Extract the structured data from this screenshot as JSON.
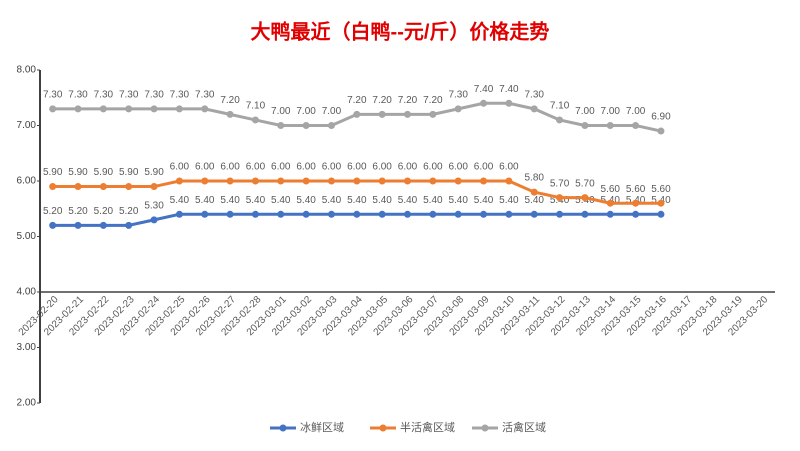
{
  "chart_data": {
    "type": "line",
    "title": "大鸭最近（白鸭--元/斤）价格走势",
    "categories": [
      "2023-02-20",
      "2023-02-21",
      "2023-02-22",
      "2023-02-23",
      "2023-02-24",
      "2023-02-25",
      "2023-02-26",
      "2023-02-27",
      "2023-02-28",
      "2023-03-01",
      "2023-03-02",
      "2023-03-03",
      "2023-03-04",
      "2023-03-05",
      "2023-03-06",
      "2023-03-07",
      "2023-03-08",
      "2023-03-09",
      "2023-03-10",
      "2023-03-11",
      "2023-03-12",
      "2023-03-13",
      "2023-03-14",
      "2023-03-15",
      "2023-03-16",
      "2023-03-17",
      "2023-03-18",
      "2023-03-19",
      "2023-03-20"
    ],
    "series": [
      {
        "name": "冰鲜区域",
        "color": "#4472c4",
        "values": [
          5.2,
          5.2,
          5.2,
          5.2,
          5.3,
          5.4,
          5.4,
          5.4,
          5.4,
          5.4,
          5.4,
          5.4,
          5.4,
          5.4,
          5.4,
          5.4,
          5.4,
          5.4,
          5.4,
          5.4,
          5.4,
          5.4,
          5.4,
          5.4,
          5.4,
          null,
          null,
          null,
          null
        ],
        "value_labels": [
          "5.20",
          "5.20",
          "5.20",
          "5.20",
          "5.30",
          "5.40",
          "5.40",
          "5.40",
          "5.40",
          "5.40",
          "5.40",
          "5.40",
          "5.40",
          "5.40",
          "5.40",
          "5.40",
          "5.40",
          "5.40",
          "5.40",
          "5.40",
          "5.40",
          "5.40",
          "5.40",
          "5.40",
          "5.40",
          null,
          null,
          null,
          null
        ]
      },
      {
        "name": "半活禽区域",
        "color": "#ed7d31",
        "values": [
          5.9,
          5.9,
          5.9,
          5.9,
          5.9,
          6.0,
          6.0,
          6.0,
          6.0,
          6.0,
          6.0,
          6.0,
          6.0,
          6.0,
          6.0,
          6.0,
          6.0,
          6.0,
          6.0,
          5.8,
          5.7,
          5.7,
          5.6,
          5.6,
          5.6,
          null,
          null,
          null,
          null
        ],
        "value_labels": [
          "5.90",
          "5.90",
          "5.90",
          "5.90",
          "5.90",
          "6.00",
          "6.00",
          "6.00",
          "6.00",
          "6.00",
          "6.00",
          "6.00",
          "6.00",
          "6.00",
          "6.00",
          "6.00",
          "6.00",
          "6.00",
          "6.00",
          "5.80",
          "5.70",
          "5.70",
          "5.60",
          "5.60",
          "5.60",
          null,
          null,
          null,
          null
        ]
      },
      {
        "name": "活禽区域",
        "color": "#a5a5a5",
        "values": [
          7.3,
          7.3,
          7.3,
          7.3,
          7.3,
          7.3,
          7.3,
          7.2,
          7.1,
          7.0,
          7.0,
          7.0,
          7.2,
          7.2,
          7.2,
          7.2,
          7.3,
          7.4,
          7.4,
          7.3,
          7.1,
          7.0,
          7.0,
          7.0,
          6.9,
          null,
          null,
          null,
          null
        ],
        "value_labels": [
          "7.30",
          "7.30",
          "7.30",
          "7.30",
          "7.30",
          "7.30",
          "7.30",
          "7.20",
          "7.10",
          "7.00",
          "7.00",
          "7.00",
          "7.20",
          "7.20",
          "7.20",
          "7.20",
          "7.30",
          "7.40",
          "7.40",
          "7.30",
          "7.10",
          "7.00",
          "7.00",
          "7.00",
          "6.90",
          null,
          null,
          null,
          null
        ]
      }
    ],
    "ylim": [
      2,
      8
    ],
    "yticks": [
      {
        "value": 2,
        "label": "2.00"
      },
      {
        "value": 3,
        "label": "3.00"
      },
      {
        "value": 4,
        "label": "4.00"
      },
      {
        "value": 5,
        "label": "5.00"
      },
      {
        "value": 6,
        "label": "6.00"
      },
      {
        "value": 7,
        "label": "7.00"
      },
      {
        "value": 8,
        "label": "8.00"
      }
    ],
    "grid": false,
    "legend": "bottom"
  }
}
